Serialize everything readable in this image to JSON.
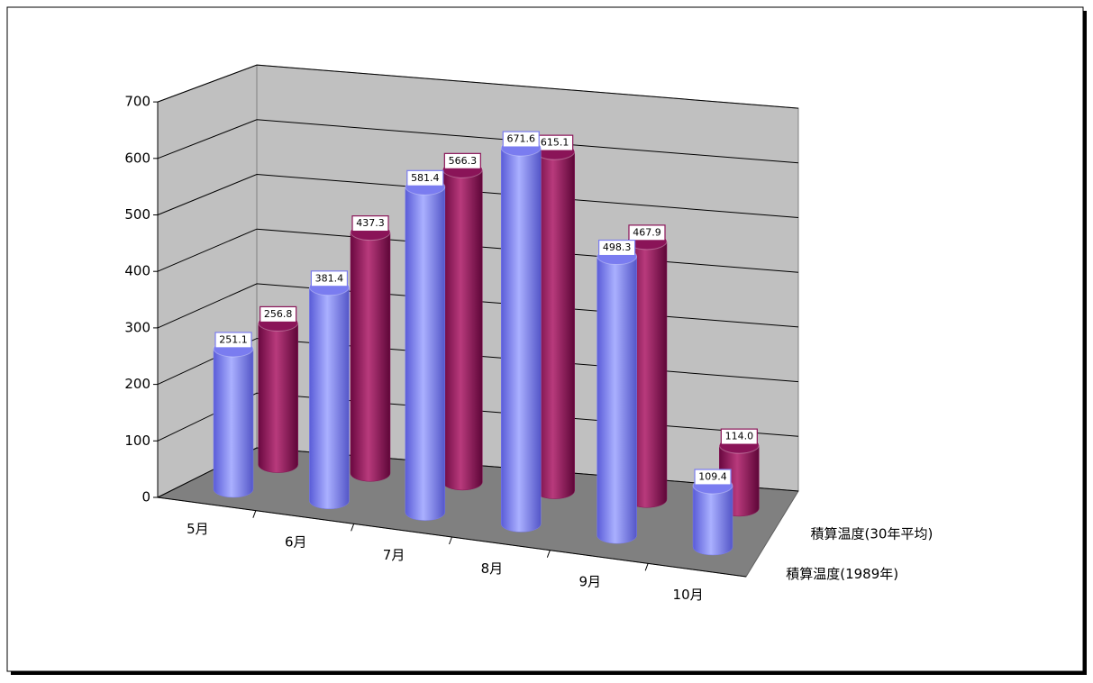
{
  "chart_data": {
    "type": "bar3d",
    "categories": [
      "5月",
      "6月",
      "7月",
      "8月",
      "9月",
      "10月"
    ],
    "series": [
      {
        "name": "積算温度(1989年)",
        "color": "#7a7cf0",
        "values": [
          251.1,
          381.4,
          581.4,
          671.6,
          498.3,
          109.4
        ],
        "value_labels": [
          "251.1",
          "381.4",
          "581.4",
          "671.6",
          "498.3",
          "109.4"
        ]
      },
      {
        "name": "積算温度(30年平均)",
        "color": "#8a1458",
        "values": [
          256.8,
          437.3,
          566.3,
          615.1,
          467.9,
          114.0
        ],
        "value_labels": [
          "256.8",
          "437.3",
          "566.3",
          "615.1",
          "467.9",
          "114.0"
        ]
      }
    ],
    "ylim": [
      0,
      700
    ],
    "yticks": [
      0,
      100,
      200,
      300,
      400,
      500,
      600,
      700
    ],
    "grid": true
  }
}
